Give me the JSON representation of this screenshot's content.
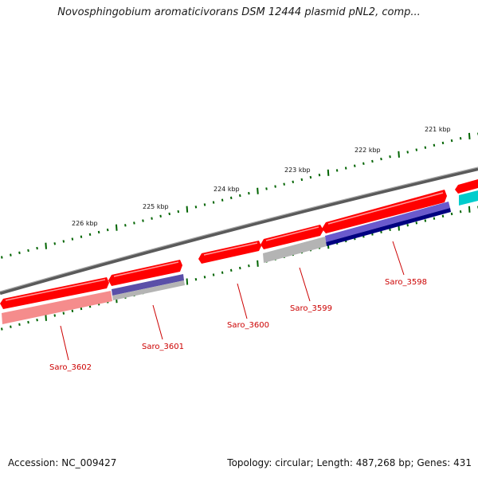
{
  "title": "Novosphingobium aromaticivorans DSM 12444 plasmid pNL2, comp...",
  "footer": {
    "accession": "Accession: NC_009427",
    "summary": "Topology: circular; Length: 487,268 bp; Genes: 431"
  },
  "scale_labels": [
    "221 kbp",
    "222 kbp",
    "223 kbp",
    "224 kbp",
    "225 kbp",
    "226 kbp"
  ],
  "genes": [
    "Saro_3598",
    "Saro_3599",
    "Saro_3600",
    "Saro_3601",
    "Saro_3602"
  ],
  "colors": {
    "cds": "#ff0000",
    "cds_light": "#f58c8c",
    "blue": "#6a5acd",
    "navy": "#000080",
    "gray": "#b4b4b4",
    "cyan": "#00cccc",
    "backbone": "#777777",
    "tick": "#006400",
    "label": "#cc0000"
  }
}
